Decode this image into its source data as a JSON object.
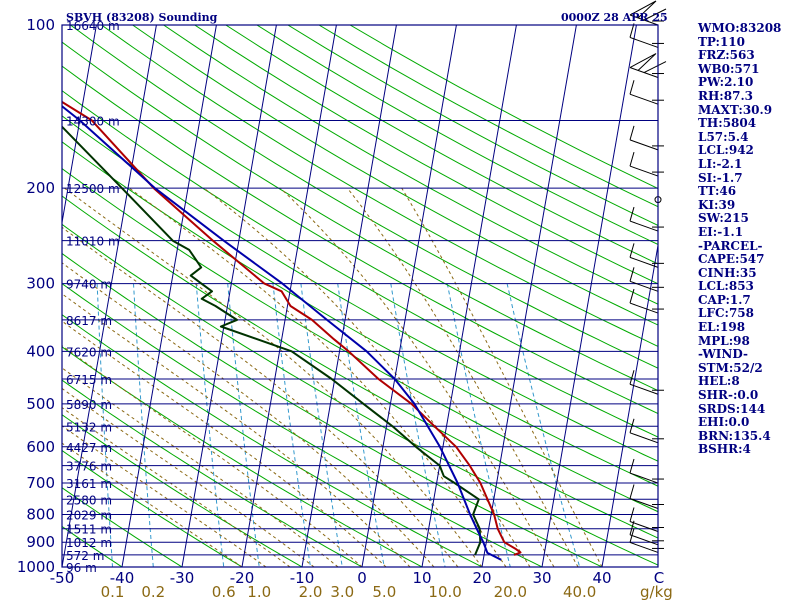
{
  "header": {
    "station_title": "SBVH (83208) Sounding",
    "time_title": "0000Z 28 APR 25"
  },
  "chart_data": {
    "type": "line",
    "plot": "skew-t log-p sounding",
    "x_axis": {
      "label": "",
      "unit": "C",
      "ticks": [
        -50,
        -40,
        -30,
        -20,
        -10,
        0,
        10,
        20,
        30,
        40
      ],
      "range_at_1000hPa": [
        -50,
        50
      ]
    },
    "y_axis": {
      "label": "",
      "scale": "log",
      "ticks": [
        100,
        200,
        300,
        400,
        500,
        600,
        700,
        800,
        900,
        1000
      ],
      "range": [
        100,
        1000
      ]
    },
    "mixing_ratio_axis": {
      "unit": "g/kg",
      "ticks": [
        0.1,
        0.2,
        0.6,
        1.0,
        2.0,
        3.0,
        5.0,
        10.0,
        20.0,
        40.0
      ]
    },
    "height_labels": [
      {
        "p": 100,
        "label": "16640 m"
      },
      {
        "p": 150,
        "label": "14300 m"
      },
      {
        "p": 200,
        "label": "12500 m"
      },
      {
        "p": 250,
        "label": "11010 m"
      },
      {
        "p": 300,
        "label": "9740 m"
      },
      {
        "p": 350,
        "label": "8617 m"
      },
      {
        "p": 400,
        "label": "7620 m"
      },
      {
        "p": 450,
        "label": "6715 m"
      },
      {
        "p": 500,
        "label": "5890 m"
      },
      {
        "p": 550,
        "label": "5132 m"
      },
      {
        "p": 600,
        "label": "4427 m"
      },
      {
        "p": 650,
        "label": "3776 m"
      },
      {
        "p": 700,
        "label": "3161 m"
      },
      {
        "p": 750,
        "label": "2580 m"
      },
      {
        "p": 800,
        "label": "2029 m"
      },
      {
        "p": 850,
        "label": "1511 m"
      },
      {
        "p": 900,
        "label": "1012 m"
      },
      {
        "p": 950,
        "label": "572 m"
      },
      {
        "p": 1000,
        "label": "96 m"
      }
    ],
    "series": [
      {
        "name": "",
        "role": "temperature",
        "color": "#b00000",
        "points": [
          [
            950,
            25.0
          ],
          [
            940,
            26.0
          ],
          [
            925,
            25.0
          ],
          [
            900,
            23.0
          ],
          [
            850,
            21.5
          ],
          [
            800,
            20.5
          ],
          [
            700,
            17.3
          ],
          [
            650,
            15.0
          ],
          [
            600,
            12.2
          ],
          [
            550,
            8.0
          ],
          [
            500,
            3.5
          ],
          [
            450,
            -2.7
          ],
          [
            400,
            -8.5
          ],
          [
            380,
            -11.3
          ],
          [
            350,
            -15.5
          ],
          [
            330,
            -19.5
          ],
          [
            310,
            -21.4
          ],
          [
            300,
            -24.5
          ],
          [
            250,
            -34.3
          ],
          [
            200,
            -45.7
          ],
          [
            150,
            -58.0
          ],
          [
            130,
            -68.0
          ],
          [
            110,
            -72.0
          ],
          [
            105,
            -70.5
          ],
          [
            102,
            -69.0
          ],
          [
            100,
            -68.0
          ]
        ]
      },
      {
        "name": "",
        "role": "dewpoint",
        "color": "#003300",
        "points": [
          [
            950,
            18.5
          ],
          [
            900,
            19.0
          ],
          [
            850,
            18.5
          ],
          [
            800,
            17.0
          ],
          [
            750,
            17.5
          ],
          [
            700,
            13.0
          ],
          [
            680,
            11.0
          ],
          [
            650,
            10.0
          ],
          [
            600,
            5.5
          ],
          [
            550,
            1.0
          ],
          [
            500,
            -4.5
          ],
          [
            450,
            -10.5
          ],
          [
            400,
            -18.0
          ],
          [
            360,
            -30.5
          ],
          [
            350,
            -28.0
          ],
          [
            330,
            -32.0
          ],
          [
            320,
            -34.5
          ],
          [
            310,
            -33.0
          ],
          [
            300,
            -35.0
          ],
          [
            290,
            -37.0
          ],
          [
            280,
            -35.5
          ],
          [
            260,
            -38.0
          ],
          [
            250,
            -41.0
          ],
          [
            200,
            -51.0
          ],
          [
            150,
            -64.0
          ],
          [
            130,
            -73.0
          ],
          [
            110,
            -79.0
          ],
          [
            100,
            -80.0
          ]
        ]
      },
      {
        "name": "",
        "role": "parcel",
        "color": "#0000aa",
        "points": [
          [
            970,
            23.0
          ],
          [
            942,
            20.5
          ],
          [
            900,
            19.5
          ],
          [
            850,
            18.0
          ],
          [
            800,
            16.5
          ],
          [
            700,
            13.5
          ],
          [
            600,
            9.5
          ],
          [
            500,
            4.0
          ],
          [
            450,
            0.0
          ],
          [
            400,
            -5.5
          ],
          [
            350,
            -13.0
          ],
          [
            300,
            -21.5
          ],
          [
            250,
            -32.5
          ],
          [
            200,
            -45.5
          ],
          [
            150,
            -60.0
          ],
          [
            130,
            -68.0
          ]
        ]
      }
    ],
    "wind_barbs": [
      {
        "p": 100,
        "kind": "pennant"
      },
      {
        "p": 110,
        "kind": "barb"
      },
      {
        "p": 125,
        "kind": "pennant"
      },
      {
        "p": 140,
        "kind": "barb"
      },
      {
        "p": 170,
        "kind": "barb"
      },
      {
        "p": 190,
        "kind": "barb"
      },
      {
        "p": 210,
        "kind": "calm"
      },
      {
        "p": 240,
        "kind": "barb"
      },
      {
        "p": 280,
        "kind": "barb"
      },
      {
        "p": 310,
        "kind": "barb"
      },
      {
        "p": 340,
        "kind": "barb"
      },
      {
        "p": 480,
        "kind": "barb"
      },
      {
        "p": 590,
        "kind": "barb"
      },
      {
        "p": 700,
        "kind": "barb"
      },
      {
        "p": 780,
        "kind": "barb"
      },
      {
        "p": 860,
        "kind": "barb"
      },
      {
        "p": 910,
        "kind": "barb"
      },
      {
        "p": 940,
        "kind": "barb"
      }
    ],
    "colors": {
      "frame": "#000080",
      "isotherm": "#000080",
      "dry_adiabat": "#00aa00",
      "moist_adiabat": "#8b6914",
      "mixing_ratio": "#3399cc"
    }
  },
  "indices": [
    "WMO:83208",
    "TP:110",
    "FRZ:563",
    "WB0:571",
    "PW:2.10",
    "RH:87.3",
    "MAXT:30.9",
    "TH:5804",
    "L57:5.4",
    "LCL:942",
    "LI:-2.1",
    "SI:-1.7",
    "TT:46",
    "KI:39",
    "SW:215",
    "EI:-1.1",
    "-PARCEL-",
    "CAPE:547",
    "CINH:35",
    "LCL:853",
    "CAP:1.7",
    "LFC:758",
    "EL:198",
    "MPL:98",
    "-WIND-",
    "STM:52/2",
    "HEL:8",
    "SHR-:0.0",
    "SRDS:144",
    "EHI:0.0",
    "BRN:135.4",
    "BSHR:4"
  ],
  "x_end_label": "C",
  "units_label": "g/kg"
}
